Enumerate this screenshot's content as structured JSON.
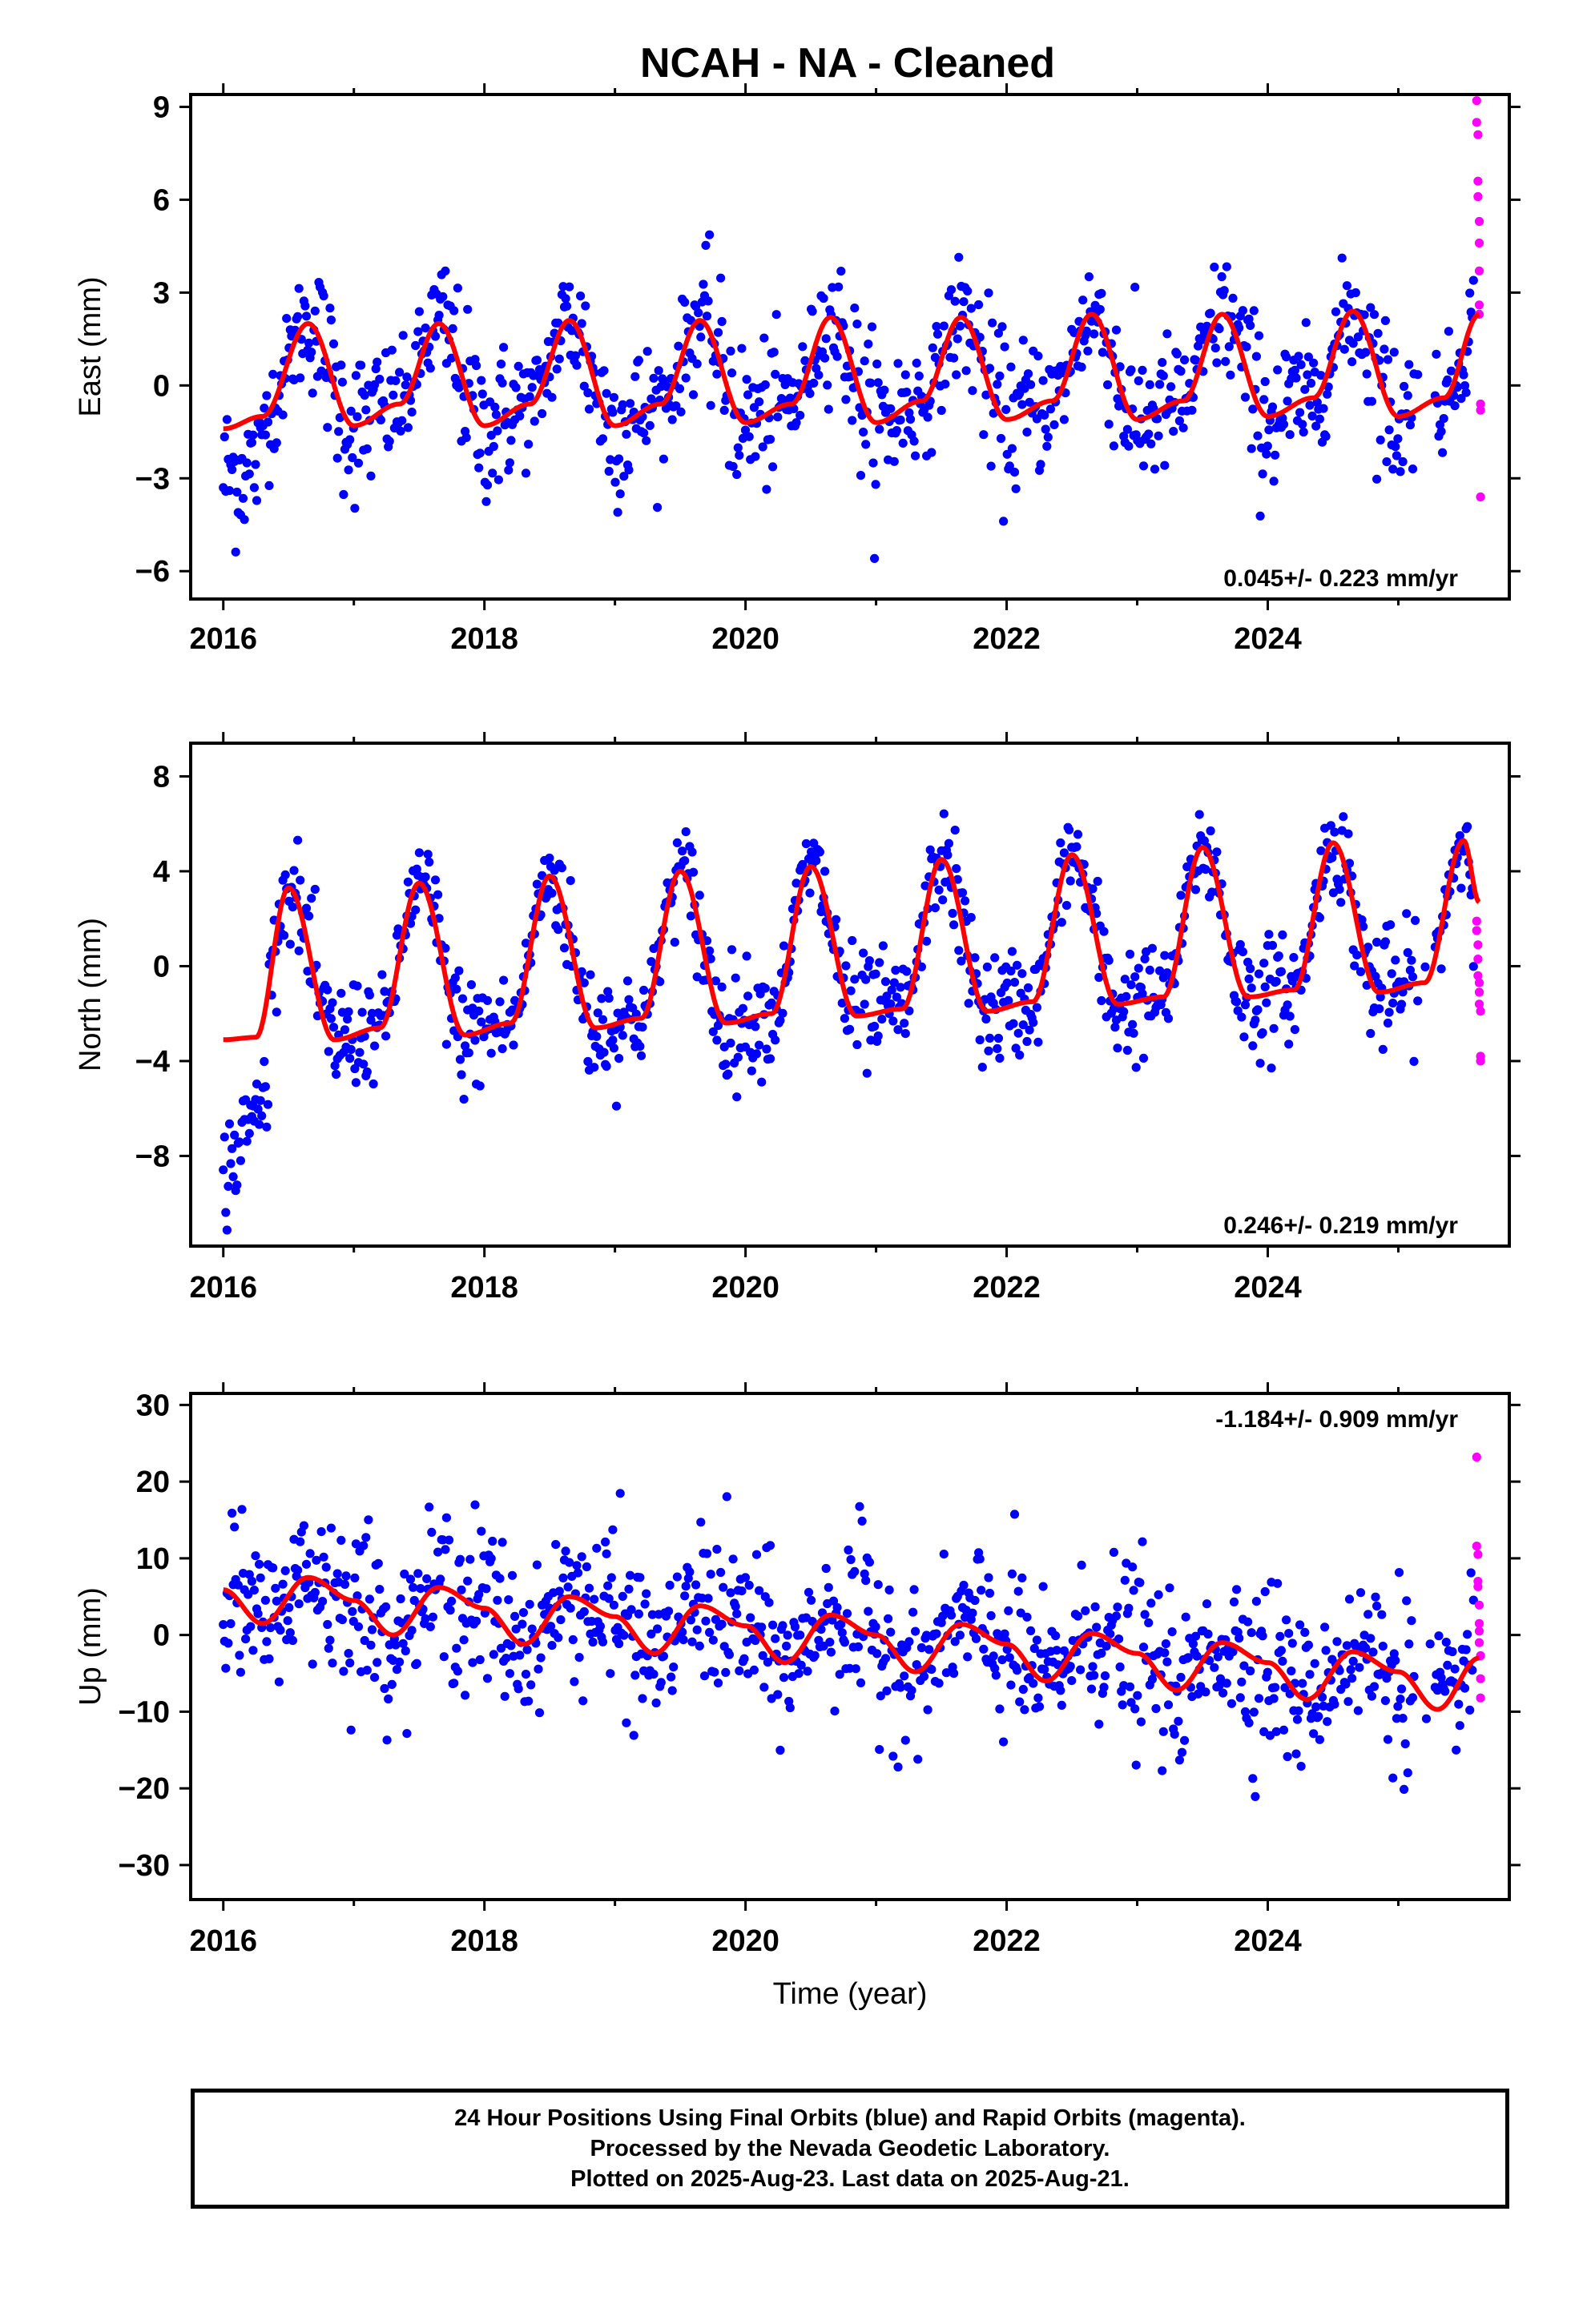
{
  "title": "NCAH  - NA - Cleaned",
  "colors": {
    "final": "#0000ff",
    "rapid": "#ff00ff",
    "model": "#ff0000",
    "axis": "#000000"
  },
  "footer": {
    "lines": [
      "24 Hour Positions Using Final Orbits (blue) and Rapid Orbits (magenta).",
      "Processed by the Nevada Geodetic Laboratory.",
      "Plotted on 2025-Aug-23. Last data on 2025-Aug-21."
    ]
  },
  "chart_data": [
    {
      "type": "scatter",
      "component": "east",
      "ylabel": "East (mm)",
      "rate_text": "0.045+/- 0.223 mm/yr",
      "xlim": [
        2015.75,
        2025.85
      ],
      "ylim": [
        -6.9,
        9.4
      ],
      "xticks": [
        2016,
        2018,
        2020,
        2022,
        2024
      ],
      "yticks": [
        -6,
        -3,
        0,
        3,
        6,
        9
      ],
      "ytick_labels": [
        "−6",
        "−3",
        "0",
        "3",
        "6",
        "9"
      ],
      "seasonal": {
        "amplitude": 1.65,
        "peak_phase": 0.62,
        "noise": 1.3,
        "trend": 0.045,
        "offset": 0.4
      },
      "model_curve": {
        "x": [
          2016.0,
          2016.3,
          2016.65,
          2017.0,
          2017.35,
          2017.65,
          2018.0,
          2018.35,
          2018.65,
          2019.0,
          2019.35,
          2019.65,
          2020.0,
          2020.35,
          2020.65,
          2021.0,
          2021.35,
          2021.65,
          2022.0,
          2022.35,
          2022.65,
          2023.0,
          2023.35,
          2023.65,
          2024.0,
          2024.35,
          2024.65,
          2025.0,
          2025.35,
          2025.62
        ],
        "y": [
          -1.4,
          -1.0,
          2.0,
          -1.3,
          -0.6,
          2.0,
          -1.3,
          -0.6,
          2.1,
          -1.3,
          -0.6,
          2.1,
          -1.2,
          -0.6,
          2.2,
          -1.2,
          -0.5,
          2.2,
          -1.1,
          -0.5,
          2.3,
          -1.1,
          -0.5,
          2.3,
          -1.0,
          -0.4,
          2.4,
          -1.0,
          -0.4,
          2.3
        ]
      },
      "rapid_points": {
        "x": [
          2025.6,
          2025.6,
          2025.61,
          2025.61,
          2025.61,
          2025.62,
          2025.62,
          2025.62,
          2025.62,
          2025.62,
          2025.63,
          2025.63,
          2025.63
        ],
        "y": [
          9.2,
          8.5,
          8.1,
          6.6,
          6.1,
          5.3,
          4.6,
          3.7,
          2.6,
          2.3,
          -0.6,
          -0.8,
          -3.6
        ]
      }
    },
    {
      "type": "scatter",
      "component": "north",
      "ylabel": "North (mm)",
      "rate_text": "0.246+/- 0.219 mm/yr",
      "xlim": [
        2015.75,
        2025.85
      ],
      "ylim": [
        -11.8,
        9.4
      ],
      "xticks": [
        2016,
        2018,
        2020,
        2022,
        2024
      ],
      "yticks": [
        -8,
        -4,
        0,
        4,
        8
      ],
      "ytick_labels": [
        "−8",
        "−4",
        "0",
        "4",
        "8"
      ],
      "seasonal": {
        "amplitude": 3.0,
        "peak_phase": 0.5,
        "noise": 1.3,
        "trend": 0.246,
        "offset": -0.4
      },
      "model_curve": {
        "x": [
          2016.0,
          2016.25,
          2016.5,
          2016.85,
          2017.2,
          2017.5,
          2017.85,
          2018.2,
          2018.5,
          2018.85,
          2019.2,
          2019.5,
          2019.85,
          2020.2,
          2020.5,
          2020.85,
          2021.2,
          2021.5,
          2021.85,
          2022.2,
          2022.5,
          2022.85,
          2023.2,
          2023.5,
          2023.85,
          2024.2,
          2024.5,
          2024.85,
          2025.2,
          2025.5,
          2025.62
        ],
        "y": [
          -3.1,
          -3.0,
          3.3,
          -3.1,
          -2.6,
          3.5,
          -2.9,
          -2.4,
          3.8,
          -2.6,
          -2.2,
          4.0,
          -2.4,
          -2.0,
          4.2,
          -2.1,
          -1.8,
          4.5,
          -1.9,
          -1.5,
          4.7,
          -1.6,
          -1.3,
          5.0,
          -1.3,
          -1.0,
          5.2,
          -1.1,
          -0.7,
          5.3,
          2.7
        ]
      },
      "rapid_points": {
        "x": [
          2025.6,
          2025.6,
          2025.61,
          2025.61,
          2025.61,
          2025.62,
          2025.62,
          2025.62,
          2025.63,
          2025.63,
          2025.63
        ],
        "y": [
          1.9,
          1.5,
          0.9,
          0.3,
          -0.4,
          -0.7,
          -1.1,
          -1.6,
          -1.9,
          -3.8,
          -4.0
        ]
      }
    },
    {
      "type": "scatter",
      "component": "up",
      "ylabel": "Up (mm)",
      "xlabel": "Time (year)",
      "rate_text": "-1.184+/- 0.909 mm/yr",
      "xlim": [
        2015.75,
        2025.85
      ],
      "ylim": [
        -34.5,
        31.5
      ],
      "xticks": [
        2016,
        2018,
        2020,
        2022,
        2024
      ],
      "yticks": [
        -30,
        -20,
        -10,
        0,
        10,
        20,
        30
      ],
      "ytick_labels": [
        "−30",
        "−20",
        "−10",
        "0",
        "10",
        "20",
        "30"
      ],
      "seasonal": {
        "amplitude": 3.4,
        "peak_phase": 0.62,
        "noise": 6.0,
        "trend": -1.184,
        "offset": 6.0
      },
      "model_curve": {
        "x": [
          2016.0,
          2016.3,
          2016.65,
          2017.0,
          2017.3,
          2017.65,
          2018.0,
          2018.3,
          2018.65,
          2019.0,
          2019.3,
          2019.65,
          2020.0,
          2020.3,
          2020.65,
          2021.0,
          2021.3,
          2021.65,
          2022.0,
          2022.3,
          2022.65,
          2023.0,
          2023.3,
          2023.65,
          2024.0,
          2024.3,
          2024.65,
          2025.0,
          2025.3,
          2025.62
        ],
        "y": [
          5.9,
          1.5,
          7.5,
          4.5,
          0.0,
          6.2,
          3.5,
          -1.2,
          5.0,
          2.4,
          -2.4,
          3.8,
          1.2,
          -3.6,
          2.6,
          0.0,
          -4.8,
          1.4,
          -1.2,
          -6.0,
          0.2,
          -2.4,
          -7.2,
          -1.0,
          -3.6,
          -8.4,
          -2.2,
          -4.8,
          -9.7,
          -3.0
        ]
      },
      "rapid_points": {
        "x": [
          2025.6,
          2025.6,
          2025.61,
          2025.61,
          2025.61,
          2025.62,
          2025.62,
          2025.62,
          2025.62,
          2025.63,
          2025.63,
          2025.63
        ],
        "y": [
          23.2,
          11.6,
          10.5,
          7.0,
          6.3,
          3.9,
          1.5,
          0.5,
          -1.0,
          -2.7,
          -5.7,
          -8.2
        ]
      }
    }
  ]
}
